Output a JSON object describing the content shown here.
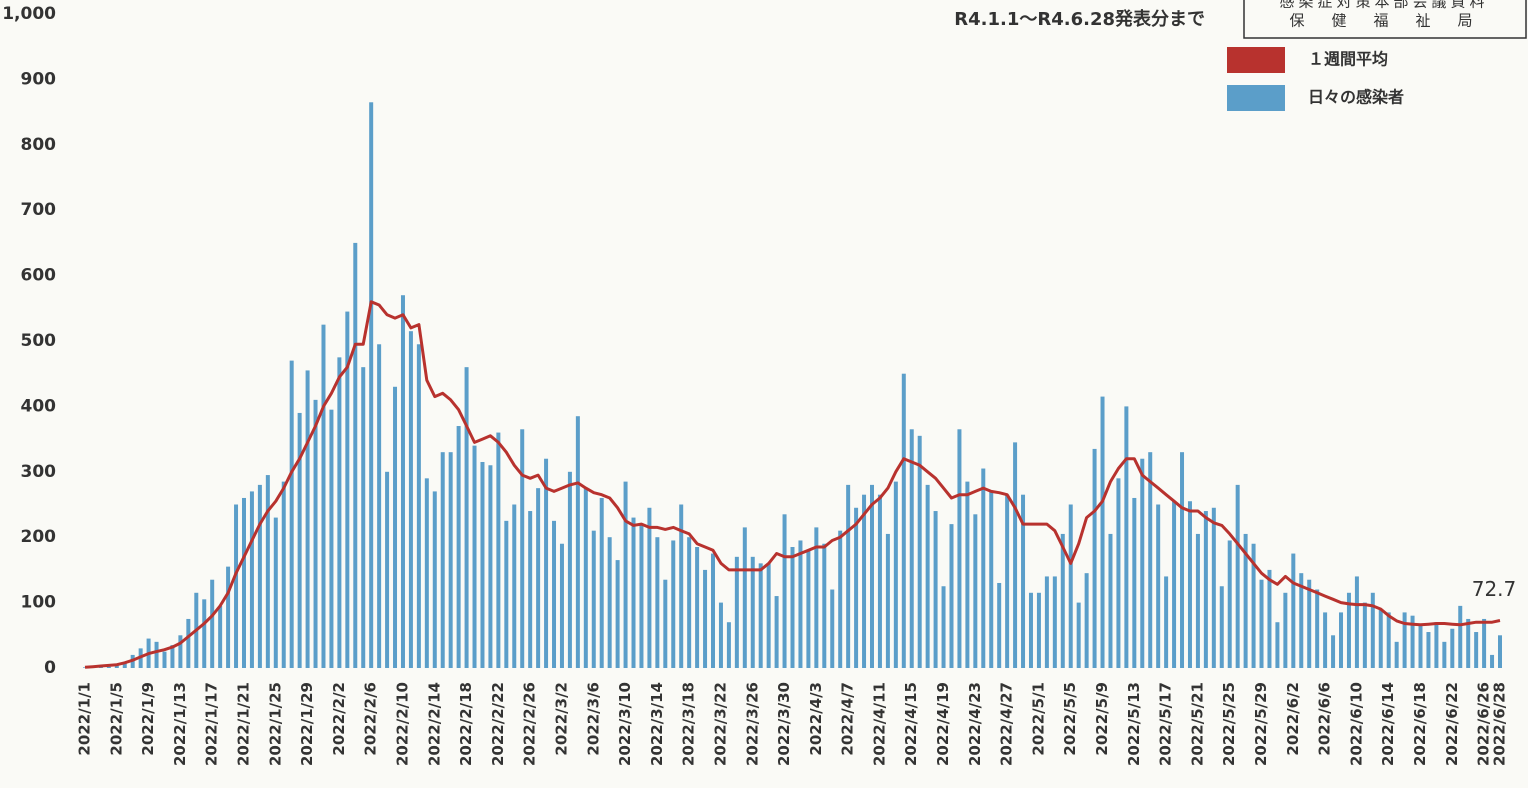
{
  "chart_data": {
    "type": "bar_line",
    "title": "R4.1.1～R4.6.28発表分まで",
    "stamp": [
      "感染症対策本部会議資料",
      "保　健　福　祉　局"
    ],
    "annotation": "72.7",
    "legend": "top-right",
    "ylim": [
      0,
      1000
    ],
    "yticks": [
      0,
      100,
      200,
      300,
      400,
      500,
      600,
      700,
      800,
      900,
      {
        "value": 1000,
        "label": "1,000"
      }
    ],
    "categories": [
      "2022/1/1",
      null,
      null,
      null,
      "2022/1/5",
      null,
      null,
      null,
      "2022/1/9",
      null,
      null,
      null,
      "2022/1/13",
      null,
      null,
      null,
      "2022/1/17",
      null,
      null,
      null,
      "2022/1/21",
      null,
      null,
      null,
      "2022/1/25",
      null,
      null,
      null,
      "2022/1/29",
      null,
      null,
      null,
      "2022/2/2",
      null,
      null,
      null,
      "2022/2/6",
      null,
      null,
      null,
      "2022/2/10",
      null,
      null,
      null,
      "2022/2/14",
      null,
      null,
      null,
      "2022/2/18",
      null,
      null,
      null,
      "2022/2/22",
      null,
      null,
      null,
      "2022/2/26",
      null,
      null,
      null,
      "2022/3/2",
      null,
      null,
      null,
      "2022/3/6",
      null,
      null,
      null,
      "2022/3/10",
      null,
      null,
      null,
      "2022/3/14",
      null,
      null,
      null,
      "2022/3/18",
      null,
      null,
      null,
      "2022/3/22",
      null,
      null,
      null,
      "2022/3/26",
      null,
      null,
      null,
      "2022/3/30",
      null,
      null,
      null,
      "2022/4/3",
      null,
      null,
      null,
      "2022/4/7",
      null,
      null,
      null,
      "2022/4/11",
      null,
      null,
      null,
      "2022/4/15",
      null,
      null,
      null,
      "2022/4/19",
      null,
      null,
      null,
      "2022/4/23",
      null,
      null,
      null,
      "2022/4/27",
      null,
      null,
      null,
      "2022/5/1",
      null,
      null,
      null,
      "2022/5/5",
      null,
      null,
      null,
      "2022/5/9",
      null,
      null,
      null,
      "2022/5/13",
      null,
      null,
      null,
      "2022/5/17",
      null,
      null,
      null,
      "2022/5/21",
      null,
      null,
      null,
      "2022/5/25",
      null,
      null,
      null,
      "2022/5/29",
      null,
      null,
      null,
      "2022/6/2",
      null,
      null,
      null,
      "2022/6/6",
      null,
      null,
      null,
      "2022/6/10",
      null,
      null,
      null,
      "2022/6/14",
      null,
      null,
      null,
      "2022/6/18",
      null,
      null,
      null,
      "2022/6/22",
      null,
      null,
      null,
      "2022/6/26",
      null,
      "2022/6/28"
    ],
    "series": [
      {
        "name": "日々の感染者",
        "type": "bar",
        "color": "#5b9ec9",
        "values": [
          1,
          2,
          3,
          2,
          5,
          8,
          20,
          30,
          45,
          40,
          25,
          35,
          50,
          75,
          115,
          105,
          135,
          95,
          155,
          250,
          260,
          270,
          280,
          295,
          230,
          285,
          470,
          390,
          455,
          410,
          525,
          395,
          475,
          545,
          650,
          460,
          865,
          495,
          300,
          430,
          570,
          515,
          495,
          290,
          270,
          330,
          330,
          370,
          460,
          340,
          315,
          310,
          360,
          225,
          250,
          365,
          240,
          275,
          320,
          225,
          190,
          300,
          385,
          275,
          210,
          260,
          200,
          165,
          285,
          230,
          220,
          245,
          200,
          135,
          195,
          250,
          200,
          185,
          150,
          175,
          100,
          70,
          170,
          215,
          170,
          160,
          160,
          110,
          235,
          185,
          195,
          180,
          215,
          190,
          120,
          210,
          280,
          245,
          265,
          280,
          265,
          205,
          285,
          450,
          365,
          355,
          280,
          240,
          125,
          220,
          365,
          285,
          235,
          305,
          270,
          130,
          265,
          345,
          265,
          115,
          115,
          140,
          140,
          205,
          250,
          100,
          145,
          335,
          415,
          205,
          290,
          400,
          260,
          320,
          330,
          250,
          140,
          255,
          330,
          255,
          205,
          240,
          245,
          125,
          195,
          280,
          205,
          190,
          135,
          150,
          70,
          115,
          175,
          145,
          135,
          120,
          85,
          50,
          85,
          115,
          140,
          100,
          115,
          90,
          85,
          40,
          85,
          80,
          65,
          55,
          70,
          40,
          60,
          95,
          75,
          55,
          75,
          20,
          50
        ]
      },
      {
        "name": "１週間平均",
        "type": "line",
        "color": "#b8322e",
        "values": [
          1,
          2,
          3,
          4,
          5,
          8,
          12,
          17,
          22,
          25,
          28,
          32,
          38,
          48,
          58,
          68,
          80,
          95,
          115,
          145,
          170,
          195,
          220,
          240,
          255,
          275,
          300,
          320,
          345,
          370,
          400,
          420,
          445,
          460,
          495,
          495,
          560,
          555,
          540,
          535,
          540,
          520,
          525,
          440,
          415,
          420,
          410,
          395,
          370,
          345,
          350,
          355,
          345,
          330,
          310,
          295,
          290,
          295,
          275,
          270,
          275,
          280,
          283,
          275,
          268,
          265,
          260,
          245,
          225,
          218,
          220,
          215,
          215,
          212,
          215,
          210,
          205,
          190,
          185,
          180,
          160,
          150,
          150,
          150,
          150,
          150,
          160,
          175,
          170,
          170,
          175,
          180,
          185,
          185,
          195,
          200,
          210,
          220,
          235,
          250,
          260,
          275,
          300,
          320,
          315,
          310,
          300,
          290,
          275,
          260,
          265,
          265,
          270,
          275,
          270,
          268,
          265,
          245,
          220,
          220,
          220,
          220,
          210,
          185,
          160,
          190,
          230,
          240,
          255,
          285,
          305,
          320,
          320,
          295,
          285,
          275,
          265,
          255,
          245,
          240,
          240,
          230,
          222,
          218,
          205,
          190,
          175,
          160,
          145,
          135,
          128,
          140,
          130,
          125,
          120,
          115,
          110,
          105,
          100,
          98,
          97,
          97,
          95,
          90,
          80,
          72,
          68,
          67,
          66,
          67,
          68,
          68,
          67,
          66,
          68,
          70,
          70,
          70,
          72.7
        ]
      }
    ]
  }
}
